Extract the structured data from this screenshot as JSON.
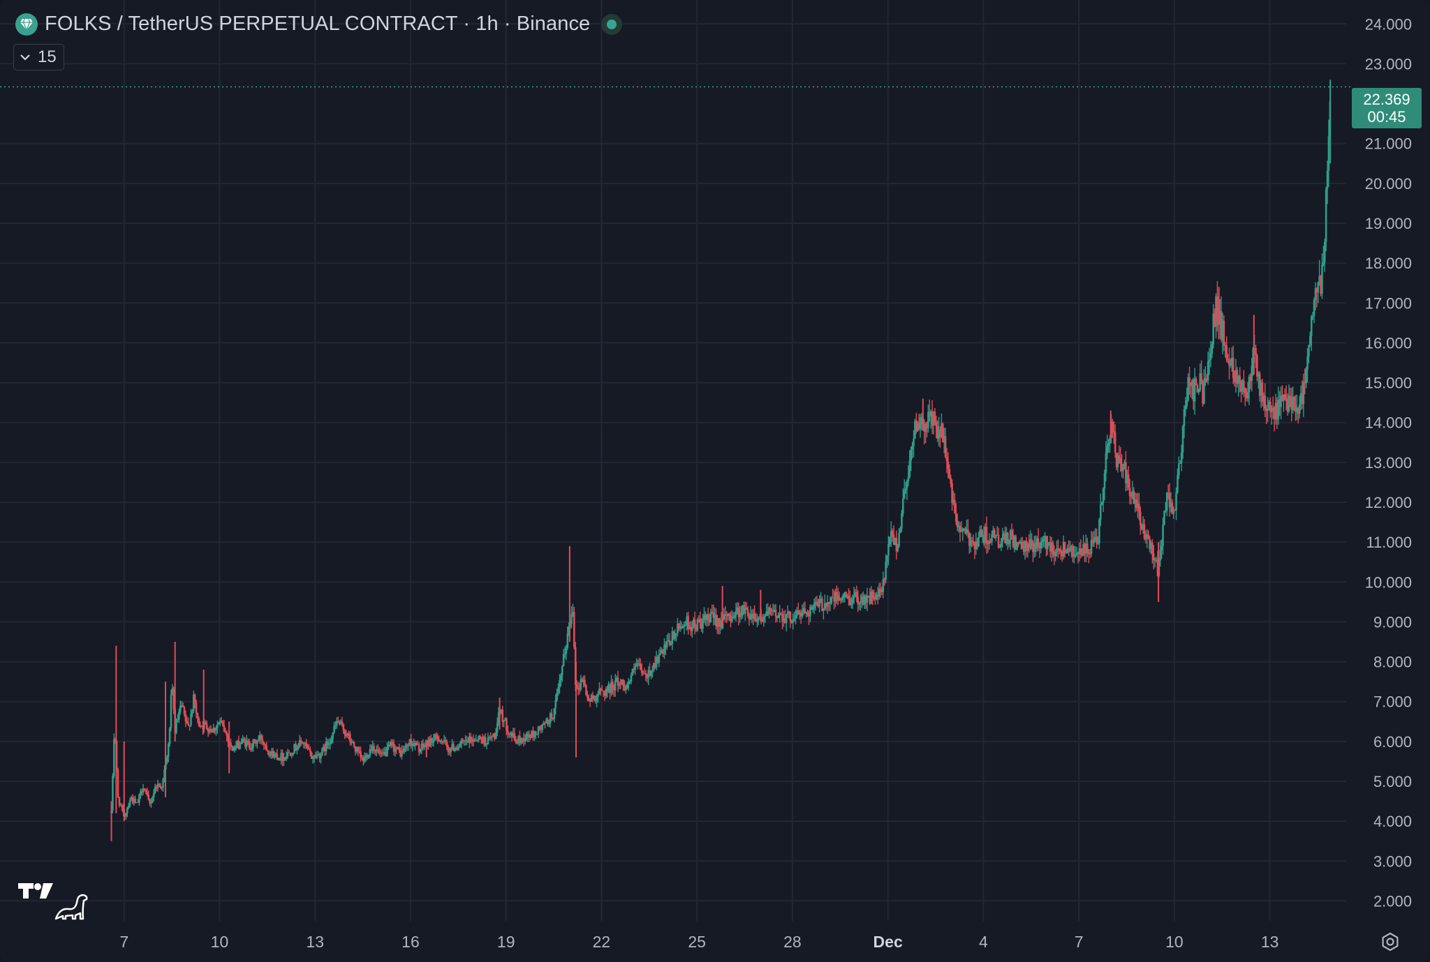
{
  "header": {
    "title": "FOLKS / TetherUS PERPETUAL CONTRACT · 1h · Binance",
    "symbol_icon": "diamond-icon",
    "status_color": "#37a58f",
    "indicator_count": "15"
  },
  "last_price": {
    "price": "22.369",
    "countdown": "00:45"
  },
  "colors": {
    "background": "#161a25",
    "up": "#2f9e8a",
    "down": "#e04d57",
    "grid": "#232735",
    "price_line": "#3aa08f"
  },
  "chart_data": {
    "type": "candlestick",
    "title": "",
    "xlabel": "",
    "ylabel": "",
    "y_ticks": [
      "24.000",
      "23.000",
      "21.000",
      "20.000",
      "19.000",
      "18.000",
      "17.000",
      "16.000",
      "15.000",
      "14.000",
      "13.000",
      "12.000",
      "11.000",
      "10.000",
      "9.000",
      "8.000",
      "7.000",
      "6.000",
      "5.000",
      "4.000",
      "3.000",
      "2.000"
    ],
    "x_ticks": [
      "7",
      "10",
      "13",
      "16",
      "19",
      "22",
      "25",
      "28",
      "Dec",
      "4",
      "7",
      "10",
      "13"
    ],
    "x_tick_days": [
      7,
      10,
      13,
      16,
      19,
      22,
      25,
      28,
      31,
      34,
      37,
      40,
      43
    ],
    "ylim": [
      1.5,
      24.6
    ],
    "xlim": [
      3.1,
      45.4
    ],
    "grid": true,
    "series": [
      {
        "price_path": [
          [
            6.6,
            4.2
          ],
          [
            6.7,
            6.5
          ],
          [
            6.8,
            4.6
          ],
          [
            7.0,
            4.1
          ],
          [
            7.2,
            4.6
          ],
          [
            7.4,
            4.4
          ],
          [
            7.6,
            4.9
          ],
          [
            7.8,
            4.4
          ],
          [
            8.0,
            4.9
          ],
          [
            8.2,
            4.9
          ],
          [
            8.4,
            5.9
          ],
          [
            8.5,
            7.4
          ],
          [
            8.6,
            6.3
          ],
          [
            8.8,
            6.9
          ],
          [
            9.0,
            6.3
          ],
          [
            9.2,
            7.1
          ],
          [
            9.3,
            6.5
          ],
          [
            9.5,
            6.4
          ],
          [
            9.8,
            6.3
          ],
          [
            10.0,
            6.5
          ],
          [
            10.2,
            6.2
          ],
          [
            10.4,
            5.8
          ],
          [
            10.7,
            6.0
          ],
          [
            11.0,
            5.9
          ],
          [
            11.3,
            6.1
          ],
          [
            11.6,
            5.7
          ],
          [
            12.0,
            5.6
          ],
          [
            12.3,
            5.8
          ],
          [
            12.6,
            6.0
          ],
          [
            12.9,
            5.6
          ],
          [
            13.2,
            5.7
          ],
          [
            13.5,
            6.1
          ],
          [
            13.7,
            6.5
          ],
          [
            13.9,
            6.3
          ],
          [
            14.2,
            5.9
          ],
          [
            14.5,
            5.5
          ],
          [
            14.8,
            5.9
          ],
          [
            15.1,
            5.6
          ],
          [
            15.4,
            5.9
          ],
          [
            15.7,
            5.7
          ],
          [
            16.0,
            6.0
          ],
          [
            16.3,
            5.8
          ],
          [
            16.6,
            6.0
          ],
          [
            16.9,
            6.1
          ],
          [
            17.2,
            5.8
          ],
          [
            17.5,
            5.9
          ],
          [
            17.8,
            6.0
          ],
          [
            18.1,
            6.1
          ],
          [
            18.4,
            6.0
          ],
          [
            18.7,
            6.2
          ],
          [
            18.8,
            6.8
          ],
          [
            19.0,
            6.4
          ],
          [
            19.3,
            6.0
          ],
          [
            19.6,
            6.1
          ],
          [
            19.9,
            6.2
          ],
          [
            20.2,
            6.4
          ],
          [
            20.5,
            6.7
          ],
          [
            20.7,
            7.5
          ],
          [
            20.9,
            8.5
          ],
          [
            21.1,
            9.4
          ],
          [
            21.2,
            7.2
          ],
          [
            21.4,
            7.6
          ],
          [
            21.6,
            7.0
          ],
          [
            21.9,
            7.2
          ],
          [
            22.2,
            7.3
          ],
          [
            22.5,
            7.5
          ],
          [
            22.8,
            7.4
          ],
          [
            23.1,
            7.9
          ],
          [
            23.4,
            7.6
          ],
          [
            23.7,
            8.0
          ],
          [
            24.0,
            8.3
          ],
          [
            24.3,
            8.7
          ],
          [
            24.6,
            9.0
          ],
          [
            24.9,
            8.9
          ],
          [
            25.2,
            9.0
          ],
          [
            25.5,
            9.1
          ],
          [
            25.8,
            9.0
          ],
          [
            26.1,
            9.2
          ],
          [
            26.4,
            9.3
          ],
          [
            26.7,
            9.2
          ],
          [
            27.0,
            9.1
          ],
          [
            27.3,
            9.2
          ],
          [
            27.6,
            9.2
          ],
          [
            27.9,
            9.1
          ],
          [
            28.2,
            9.2
          ],
          [
            28.5,
            9.3
          ],
          [
            28.8,
            9.4
          ],
          [
            29.1,
            9.5
          ],
          [
            29.4,
            9.6
          ],
          [
            29.7,
            9.6
          ],
          [
            30.0,
            9.6
          ],
          [
            30.3,
            9.6
          ],
          [
            30.6,
            9.6
          ],
          [
            30.8,
            9.7
          ],
          [
            31.0,
            10.7
          ],
          [
            31.1,
            11.2
          ],
          [
            31.3,
            10.9
          ],
          [
            31.5,
            12.2
          ],
          [
            31.7,
            13.1
          ],
          [
            31.9,
            14.1
          ],
          [
            32.1,
            13.8
          ],
          [
            32.3,
            14.2
          ],
          [
            32.5,
            13.9
          ],
          [
            32.7,
            13.7
          ],
          [
            32.9,
            12.9
          ],
          [
            33.1,
            11.6
          ],
          [
            33.3,
            11.3
          ],
          [
            33.5,
            11.1
          ],
          [
            33.7,
            11.0
          ],
          [
            34.0,
            11.2
          ],
          [
            34.3,
            11.1
          ],
          [
            34.6,
            11.0
          ],
          [
            34.9,
            11.1
          ],
          [
            35.2,
            10.8
          ],
          [
            35.5,
            10.9
          ],
          [
            35.8,
            11.0
          ],
          [
            36.1,
            10.9
          ],
          [
            36.4,
            10.8
          ],
          [
            36.7,
            10.9
          ],
          [
            37.0,
            10.7
          ],
          [
            37.3,
            10.8
          ],
          [
            37.6,
            11.0
          ],
          [
            37.8,
            12.8
          ],
          [
            38.0,
            14.0
          ],
          [
            38.2,
            13.0
          ],
          [
            38.4,
            12.9
          ],
          [
            38.6,
            12.2
          ],
          [
            38.8,
            11.9
          ],
          [
            39.0,
            11.3
          ],
          [
            39.2,
            11.0
          ],
          [
            39.4,
            10.6
          ],
          [
            39.5,
            10.2
          ],
          [
            39.6,
            11.1
          ],
          [
            39.8,
            12.2
          ],
          [
            40.0,
            11.8
          ],
          [
            40.2,
            13.2
          ],
          [
            40.4,
            14.9
          ],
          [
            40.6,
            14.8
          ],
          [
            40.8,
            15.0
          ],
          [
            40.9,
            14.7
          ],
          [
            41.1,
            15.8
          ],
          [
            41.3,
            16.9
          ],
          [
            41.5,
            16.3
          ],
          [
            41.7,
            15.6
          ],
          [
            41.9,
            15.3
          ],
          [
            42.1,
            15.0
          ],
          [
            42.3,
            14.7
          ],
          [
            42.5,
            16.1
          ],
          [
            42.7,
            14.8
          ],
          [
            42.9,
            14.3
          ],
          [
            43.1,
            14.2
          ],
          [
            43.3,
            14.4
          ],
          [
            43.5,
            14.5
          ],
          [
            43.7,
            14.6
          ],
          [
            43.9,
            14.4
          ],
          [
            44.0,
            14.6
          ],
          [
            44.1,
            15.0
          ],
          [
            44.2,
            15.8
          ],
          [
            44.3,
            16.3
          ],
          [
            44.4,
            17.0
          ],
          [
            44.5,
            17.6
          ],
          [
            44.6,
            17.2
          ],
          [
            44.7,
            18.3
          ],
          [
            44.8,
            20.3
          ],
          [
            44.9,
            22.369
          ]
        ],
        "spikes": [
          {
            "x": 6.6,
            "low": 3.5,
            "high": 4.5
          },
          {
            "x": 6.75,
            "low": 4.2,
            "high": 8.4
          },
          {
            "x": 7.0,
            "low": 4.0,
            "high": 6.0
          },
          {
            "x": 8.3,
            "low": 4.6,
            "high": 7.5
          },
          {
            "x": 8.6,
            "low": 6.0,
            "high": 8.5
          },
          {
            "x": 9.5,
            "low": 6.2,
            "high": 7.8
          },
          {
            "x": 10.3,
            "low": 5.2,
            "high": 6.5
          },
          {
            "x": 16.5,
            "low": 5.6,
            "high": 6.0
          },
          {
            "x": 18.8,
            "low": 6.3,
            "high": 7.1
          },
          {
            "x": 21.0,
            "low": 8.5,
            "high": 10.9
          },
          {
            "x": 21.2,
            "low": 5.6,
            "high": 8.0
          },
          {
            "x": 25.8,
            "low": 8.9,
            "high": 9.9
          },
          {
            "x": 27.0,
            "low": 9.0,
            "high": 9.8
          },
          {
            "x": 32.1,
            "low": 13.8,
            "high": 14.6
          },
          {
            "x": 38.0,
            "low": 13.6,
            "high": 14.3
          },
          {
            "x": 39.5,
            "low": 9.5,
            "high": 11.0
          },
          {
            "x": 41.4,
            "low": 16.5,
            "high": 17.4
          },
          {
            "x": 42.5,
            "low": 15.2,
            "high": 16.7
          },
          {
            "x": 44.9,
            "low": 20.5,
            "high": 22.6
          }
        ]
      }
    ]
  }
}
